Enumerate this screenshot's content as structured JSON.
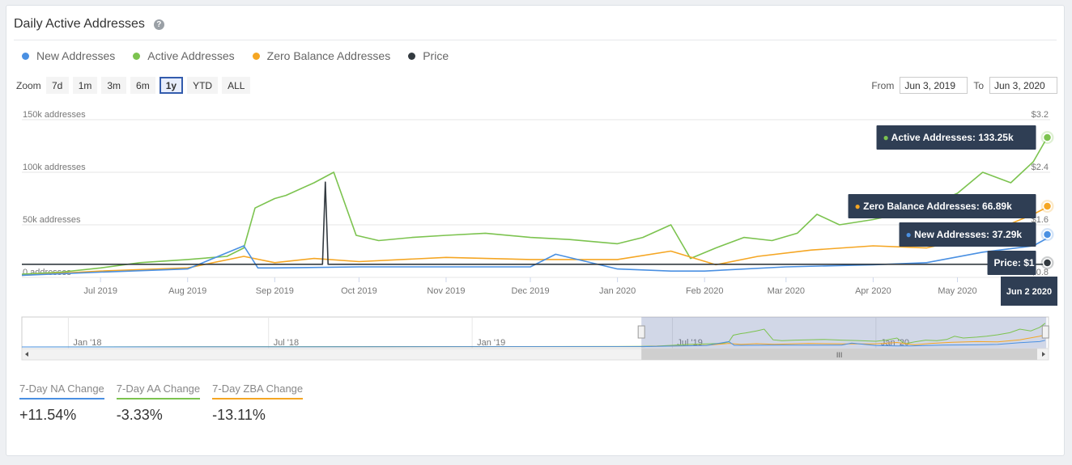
{
  "header": {
    "title": "Daily Active Addresses",
    "help_icon": "?"
  },
  "legend": [
    {
      "label": "New Addresses",
      "color": "#4a90e2"
    },
    {
      "label": "Active Addresses",
      "color": "#7cc34f"
    },
    {
      "label": "Zero Balance Addresses",
      "color": "#f5a623"
    },
    {
      "label": "Price",
      "color": "#333a40"
    }
  ],
  "zoom": {
    "label": "Zoom",
    "buttons": [
      "7d",
      "1m",
      "3m",
      "6m",
      "1y",
      "YTD",
      "ALL"
    ],
    "active": "1y"
  },
  "range": {
    "from_label": "From",
    "from_value": "Jun 3, 2019",
    "to_label": "To",
    "to_value": "Jun 3, 2020"
  },
  "chart_data": {
    "type": "line",
    "x_tick_labels": [
      "Jul 2019",
      "Aug 2019",
      "Sep 2019",
      "Oct 2019",
      "Nov 2019",
      "Dec 2019",
      "Jan 2020",
      "Feb 2020",
      "Mar 2020",
      "Apr 2020",
      "May 2020"
    ],
    "y_axis_left": {
      "ticks": [
        "150k addresses",
        "100k addresses",
        "50k addresses",
        "0 addresses"
      ],
      "ylim": [
        0,
        150000
      ]
    },
    "y_axis_right": {
      "ticks": [
        "$3.2",
        "$2.4",
        "$1.6",
        "$0.8"
      ],
      "ylim": [
        0.8,
        3.2
      ]
    },
    "grid": true,
    "series": [
      {
        "name": "Active Addresses",
        "color": "#7cc34f",
        "axis": "left",
        "x": [
          "2019-06-03",
          "2019-06-17",
          "2019-07-01",
          "2019-07-15",
          "2019-08-01",
          "2019-08-15",
          "2019-08-21",
          "2019-08-25",
          "2019-09-01",
          "2019-09-05",
          "2019-09-15",
          "2019-09-22",
          "2019-09-30",
          "2019-10-08",
          "2019-10-20",
          "2019-11-01",
          "2019-11-15",
          "2019-12-01",
          "2019-12-15",
          "2020-01-01",
          "2020-01-10",
          "2020-01-20",
          "2020-01-27",
          "2020-02-05",
          "2020-02-15",
          "2020-02-25",
          "2020-03-05",
          "2020-03-12",
          "2020-03-20",
          "2020-04-01",
          "2020-04-10",
          "2020-04-20",
          "2020-05-01",
          "2020-05-10",
          "2020-05-20",
          "2020-05-28",
          "2020-06-02"
        ],
        "y": [
          3000,
          5000,
          9000,
          14000,
          17000,
          20000,
          28000,
          66000,
          75000,
          78000,
          90000,
          100000,
          40000,
          35000,
          38000,
          40000,
          42000,
          38000,
          36000,
          32000,
          38000,
          50000,
          18000,
          28000,
          38000,
          35000,
          42000,
          60000,
          50000,
          55000,
          60000,
          68000,
          80000,
          100000,
          90000,
          110000,
          133250
        ]
      },
      {
        "name": "Zero Balance Addresses",
        "color": "#f5a623",
        "axis": "left",
        "x": [
          "2019-06-03",
          "2019-07-01",
          "2019-08-01",
          "2019-08-21",
          "2019-09-01",
          "2019-09-15",
          "2019-10-01",
          "2019-11-01",
          "2019-12-01",
          "2020-01-01",
          "2020-01-20",
          "2020-02-05",
          "2020-02-20",
          "2020-03-10",
          "2020-04-01",
          "2020-04-20",
          "2020-05-10",
          "2020-05-28",
          "2020-06-02"
        ],
        "y": [
          2000,
          6000,
          9000,
          20000,
          14000,
          18000,
          15000,
          19000,
          17000,
          17000,
          25000,
          12000,
          20000,
          26000,
          30000,
          28000,
          40000,
          60000,
          66890
        ]
      },
      {
        "name": "New Addresses",
        "color": "#4a90e2",
        "axis": "left",
        "x": [
          "2019-06-03",
          "2019-07-01",
          "2019-08-01",
          "2019-08-21",
          "2019-08-26",
          "2019-09-01",
          "2019-10-01",
          "2019-11-01",
          "2019-12-01",
          "2019-12-10",
          "2020-01-01",
          "2020-01-20",
          "2020-02-01",
          "2020-03-01",
          "2020-04-01",
          "2020-04-20",
          "2020-05-10",
          "2020-05-28",
          "2020-06-02"
        ],
        "y": [
          2000,
          5000,
          8000,
          30000,
          9000,
          9000,
          10000,
          10000,
          10000,
          22000,
          8000,
          6000,
          6000,
          10000,
          12000,
          14000,
          24000,
          30000,
          37290
        ]
      },
      {
        "name": "Price",
        "color": "#333a40",
        "axis": "right",
        "x": [
          "2019-06-03",
          "2019-07-01",
          "2019-08-01",
          "2019-09-01",
          "2019-09-18",
          "2019-09-19",
          "2019-09-20",
          "2019-10-01",
          "2019-11-01",
          "2019-12-01",
          "2020-01-01",
          "2020-02-01",
          "2020-03-01",
          "2020-04-01",
          "2020-05-01",
          "2020-06-02"
        ],
        "y": [
          1.0,
          1.0,
          1.0,
          1.0,
          1.0,
          2.25,
          1.0,
          1.0,
          1.0,
          1.0,
          1.0,
          1.0,
          1.0,
          1.0,
          1.0,
          1.0
        ]
      }
    ],
    "tooltips": [
      {
        "label": "Active Addresses:",
        "value": "133.25k",
        "color": "#7cc34f"
      },
      {
        "label": "Zero Balance Addresses:",
        "value": "66.89k",
        "color": "#f5a623"
      },
      {
        "label": "New Addresses:",
        "value": "37.29k",
        "color": "#4a90e2"
      },
      {
        "label": "Price:",
        "value": "$1"
      }
    ],
    "tooltip_date": "Jun 2 2020",
    "navigator": {
      "tick_labels": [
        "Jan '18",
        "Jul '18",
        "Jan '19",
        "Jul '19",
        "Jan '20"
      ],
      "selection_start": "2019-06-03",
      "selection_end": "2020-06-03",
      "scroll_grip": "III"
    }
  },
  "stats": [
    {
      "label": "7-Day NA Change",
      "value": "+11.54%",
      "color": "#4a90e2"
    },
    {
      "label": "7-Day AA Change",
      "value": "-3.33%",
      "color": "#7cc34f"
    },
    {
      "label": "7-Day ZBA Change",
      "value": "-13.11%",
      "color": "#f5a623"
    }
  ]
}
